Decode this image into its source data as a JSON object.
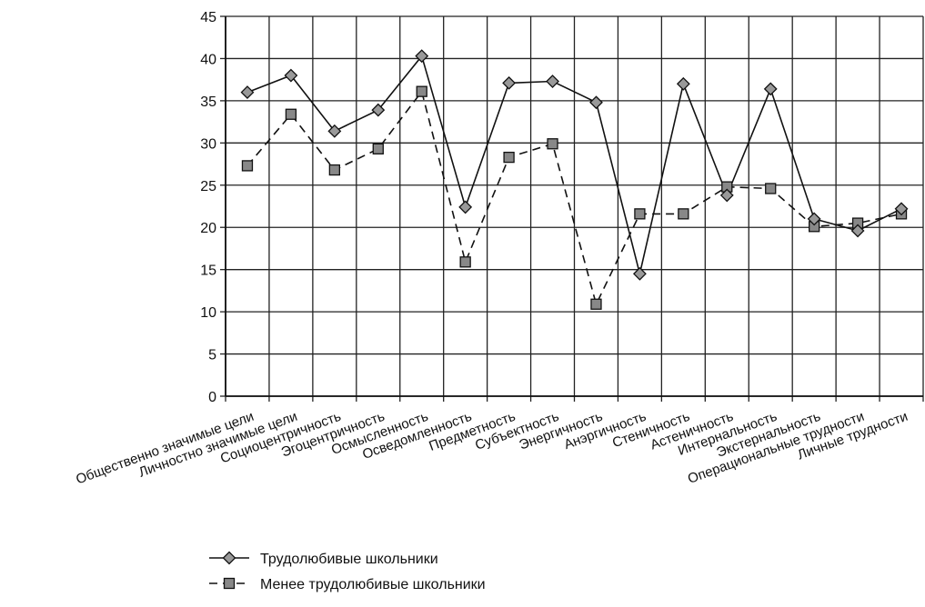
{
  "chart_data": {
    "type": "line",
    "categories": [
      "Общественно значимые цели",
      "Личностно значимые цели",
      "Социоцентричность",
      "Эгоцентричность",
      "Осмысленность",
      "Осведомленность",
      "Предметность",
      "Субъектность",
      "Энергичность",
      "Анэргичность",
      "Стеничность",
      "Астеничность",
      "Интернальность",
      "Экстернальность",
      "Операциональные трудности",
      "Личные трудности"
    ],
    "series": [
      {
        "name": "Трудолюбивые школьники",
        "marker": "diamond",
        "line_style": "solid",
        "values": [
          36.0,
          38.0,
          31.4,
          33.9,
          40.3,
          22.4,
          37.1,
          37.3,
          34.8,
          14.5,
          37.0,
          23.8,
          36.4,
          21.0,
          19.6,
          22.2
        ]
      },
      {
        "name": "Менее трудолюбивые школьники",
        "marker": "square",
        "line_style": "dashed",
        "values": [
          27.3,
          33.4,
          26.8,
          29.3,
          36.1,
          15.9,
          28.3,
          29.9,
          10.9,
          21.6,
          21.6,
          24.8,
          24.6,
          20.1,
          20.5,
          21.6
        ]
      }
    ],
    "ylim": [
      0,
      45
    ],
    "yticks": [
      "0",
      "5",
      "10",
      "15",
      "20",
      "25",
      "30",
      "35",
      "40",
      "45"
    ],
    "grid": true,
    "legend_position": "bottom-center",
    "colors": {
      "line": "#111111",
      "grid": "#222222",
      "marker_fill_square": "#888888",
      "marker_fill_diamond": "#999999"
    }
  }
}
